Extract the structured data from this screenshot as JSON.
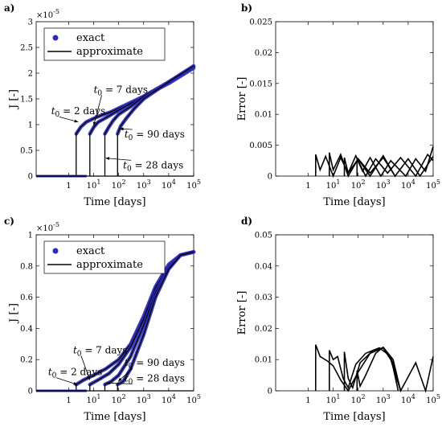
{
  "colors": {
    "exact": "#2b2bb8",
    "approx": "#000000",
    "frame": "#000000"
  },
  "chart_data": [
    {
      "panel": "a)",
      "type": "scatter",
      "xscale": "log",
      "xlabel": "Time [days]",
      "ylabel": "J [-]",
      "ymultiplier": "×10^-5",
      "xlim": [
        0.05,
        100000
      ],
      "ylim": [
        0,
        3
      ],
      "xticks": [
        {
          "v": 1,
          "base": "1",
          "exp": ""
        },
        {
          "v": 10,
          "base": "10",
          "exp": "1"
        },
        {
          "v": 100,
          "base": "10",
          "exp": "2"
        },
        {
          "v": 1000,
          "base": "10",
          "exp": "3"
        },
        {
          "v": 10000,
          "base": "10",
          "exp": "4"
        },
        {
          "v": 100000,
          "base": "10",
          "exp": "5"
        }
      ],
      "yticks": [
        "0",
        "0.5",
        "1",
        "1.5",
        "2",
        "2.5",
        "3"
      ],
      "ytick_values": [
        0,
        0.5,
        1,
        1.5,
        2,
        2.5,
        3
      ],
      "legend": {
        "position": "top-left",
        "entries": [
          "exact",
          "approximate"
        ]
      },
      "series": [
        {
          "name": "t0 = 2 days",
          "t0": 2,
          "points": [
            [
              2,
              0
            ],
            [
              2,
              0.82
            ],
            [
              3,
              0.95
            ],
            [
              5,
              1.05
            ],
            [
              10,
              1.12
            ],
            [
              20,
              1.18
            ],
            [
              50,
              1.25
            ],
            [
              100,
              1.32
            ],
            [
              1000,
              1.55
            ],
            [
              10000,
              1.8
            ],
            [
              100000,
              2.1
            ]
          ]
        },
        {
          "name": "t0 = 7 days",
          "t0": 7,
          "points": [
            [
              7,
              0
            ],
            [
              7,
              0.82
            ],
            [
              10,
              0.95
            ],
            [
              15,
              1.05
            ],
            [
              30,
              1.13
            ],
            [
              100,
              1.28
            ],
            [
              1000,
              1.55
            ],
            [
              10000,
              1.82
            ],
            [
              100000,
              2.12
            ]
          ]
        },
        {
          "name": "t0 = 28 days",
          "t0": 28,
          "points": [
            [
              28,
              0
            ],
            [
              28,
              0.82
            ],
            [
              40,
              0.95
            ],
            [
              60,
              1.08
            ],
            [
              100,
              1.2
            ],
            [
              300,
              1.35
            ],
            [
              1000,
              1.55
            ],
            [
              10000,
              1.83
            ],
            [
              100000,
              2.13
            ]
          ]
        },
        {
          "name": "t0 = 90 days",
          "t0": 90,
          "points": [
            [
              90,
              0
            ],
            [
              90,
              0.82
            ],
            [
              120,
              0.97
            ],
            [
              200,
              1.12
            ],
            [
              400,
              1.3
            ],
            [
              1000,
              1.5
            ],
            [
              10000,
              1.83
            ],
            [
              100000,
              2.14
            ]
          ]
        }
      ],
      "annotations": [
        {
          "text_prefix": "t",
          "sub": "0",
          "text_suffix": " = 7 days",
          "x": 10,
          "y": 1.62,
          "target": [
            10,
            0.98
          ]
        },
        {
          "text_prefix": "t",
          "sub": "0",
          "text_suffix": " = 2 days",
          "x": 0.2,
          "y": 1.2,
          "target": [
            2.4,
            1.05
          ]
        },
        {
          "text_prefix": "t",
          "sub": "0",
          "text_suffix": " = 90 days",
          "x": 170,
          "y": 0.75,
          "target": [
            110,
            0.92
          ]
        },
        {
          "text_prefix": "t",
          "sub": "0",
          "text_suffix": " = 28 days",
          "x": 150,
          "y": 0.15,
          "target": [
            30,
            0.35
          ]
        }
      ]
    },
    {
      "panel": "b)",
      "type": "line",
      "xscale": "log",
      "xlabel": "Time [days]",
      "ylabel": "Error [-]",
      "xlim": [
        0.05,
        100000
      ],
      "ylim": [
        0,
        0.025
      ],
      "xticks": [
        {
          "v": 1,
          "base": "1",
          "exp": ""
        },
        {
          "v": 10,
          "base": "10",
          "exp": "1"
        },
        {
          "v": 100,
          "base": "10",
          "exp": "2"
        },
        {
          "v": 1000,
          "base": "10",
          "exp": "3"
        },
        {
          "v": 10000,
          "base": "10",
          "exp": "4"
        },
        {
          "v": 100000,
          "base": "10",
          "exp": "5"
        }
      ],
      "yticks": [
        "0",
        "0.005",
        "0.01",
        "0.015",
        "0.02",
        "0.025"
      ],
      "ytick_values": [
        0,
        0.005,
        0.01,
        0.015,
        0.02,
        0.025
      ],
      "series": [
        {
          "points": [
            [
              2,
              0
            ],
            [
              2,
              0.0035
            ],
            [
              3,
              0.001
            ],
            [
              5,
              0.0032
            ],
            [
              10,
              0
            ],
            [
              20,
              0.003
            ],
            [
              40,
              0.0005
            ],
            [
              100,
              0.0028
            ],
            [
              300,
              0
            ],
            [
              1000,
              0.0033
            ],
            [
              3000,
              0
            ],
            [
              10000,
              0.0028
            ],
            [
              30000,
              0
            ],
            [
              100000,
              0.0032
            ]
          ]
        },
        {
          "points": [
            [
              7,
              0
            ],
            [
              7,
              0.0038
            ],
            [
              10,
              0.001
            ],
            [
              20,
              0.0035
            ],
            [
              40,
              0
            ],
            [
              100,
              0.0028
            ],
            [
              300,
              0.0005
            ],
            [
              1000,
              0.003
            ],
            [
              3000,
              0
            ]
          ]
        },
        {
          "points": [
            [
              28,
              0
            ],
            [
              28,
              0.003
            ],
            [
              40,
              0.0005
            ],
            [
              80,
              0.0033
            ],
            [
              200,
              0
            ],
            [
              500,
              0.0028
            ],
            [
              1500,
              0.0005
            ],
            [
              5000,
              0.003
            ],
            [
              20000,
              0
            ],
            [
              60000,
              0.0035
            ],
            [
              100000,
              0.0025
            ]
          ]
        },
        {
          "points": [
            [
              90,
              0
            ],
            [
              90,
              0.0028
            ],
            [
              150,
              0.0008
            ],
            [
              300,
              0.003
            ],
            [
              800,
              0
            ],
            [
              2000,
              0.0025
            ],
            [
              8000,
              0
            ],
            [
              20000,
              0.0028
            ],
            [
              50000,
              0.0008
            ],
            [
              100000,
              0.0048
            ]
          ]
        }
      ]
    },
    {
      "panel": "c)",
      "type": "scatter",
      "xscale": "log",
      "xlabel": "Time [days]",
      "ylabel": "J [-]",
      "ymultiplier": "×10^-5",
      "xlim": [
        0.05,
        100000
      ],
      "ylim": [
        0,
        1
      ],
      "xticks": [
        {
          "v": 1,
          "base": "1",
          "exp": ""
        },
        {
          "v": 10,
          "base": "10",
          "exp": "1"
        },
        {
          "v": 100,
          "base": "10",
          "exp": "2"
        },
        {
          "v": 1000,
          "base": "10",
          "exp": "3"
        },
        {
          "v": 10000,
          "base": "10",
          "exp": "4"
        },
        {
          "v": 100000,
          "base": "10",
          "exp": "5"
        }
      ],
      "yticks": [
        "0",
        "0.2",
        "0.4",
        "0.6",
        "0.8",
        "1"
      ],
      "ytick_values": [
        0,
        0.2,
        0.4,
        0.6,
        0.8,
        1
      ],
      "legend": {
        "position": "top-left",
        "entries": [
          "exact",
          "approximate"
        ]
      },
      "series": [
        {
          "name": "t0 = 2 days",
          "t0": 2,
          "points": [
            [
              2,
              0
            ],
            [
              2,
              0.04
            ],
            [
              4,
              0.07
            ],
            [
              10,
              0.1
            ],
            [
              30,
              0.14
            ],
            [
              100,
              0.2
            ],
            [
              300,
              0.3
            ],
            [
              1000,
              0.48
            ],
            [
              3000,
              0.67
            ],
            [
              10000,
              0.81
            ],
            [
              30000,
              0.87
            ],
            [
              100000,
              0.89
            ]
          ]
        },
        {
          "name": "t0 = 7 days",
          "t0": 7,
          "points": [
            [
              7,
              0
            ],
            [
              7,
              0.04
            ],
            [
              15,
              0.07
            ],
            [
              40,
              0.11
            ],
            [
              100,
              0.17
            ],
            [
              300,
              0.28
            ],
            [
              1000,
              0.46
            ],
            [
              3000,
              0.66
            ],
            [
              10000,
              0.8
            ],
            [
              30000,
              0.87
            ],
            [
              100000,
              0.89
            ]
          ]
        },
        {
          "name": "t0 = 28 days",
          "t0": 28,
          "points": [
            [
              28,
              0
            ],
            [
              28,
              0.04
            ],
            [
              50,
              0.06
            ],
            [
              100,
              0.1
            ],
            [
              300,
              0.22
            ],
            [
              1000,
              0.42
            ],
            [
              3000,
              0.63
            ],
            [
              10000,
              0.79
            ],
            [
              30000,
              0.87
            ],
            [
              100000,
              0.89
            ]
          ]
        },
        {
          "name": "t0 = 90 days",
          "t0": 90,
          "points": [
            [
              90,
              0
            ],
            [
              90,
              0.04
            ],
            [
              150,
              0.06
            ],
            [
              300,
              0.14
            ],
            [
              1000,
              0.36
            ],
            [
              3000,
              0.6
            ],
            [
              10000,
              0.78
            ],
            [
              30000,
              0.87
            ],
            [
              100000,
              0.89
            ]
          ]
        }
      ],
      "annotations": [
        {
          "text_prefix": "t",
          "sub": "0",
          "text_suffix": " = 7 days",
          "x": 1.5,
          "y": 0.24,
          "target": [
            7,
            0.07
          ]
        },
        {
          "text_prefix": "t",
          "sub": "0",
          "text_suffix": " = 2 days",
          "x": 0.15,
          "y": 0.1,
          "target": [
            2.2,
            0.04
          ]
        },
        {
          "text_prefix": "t",
          "sub": "0",
          "text_suffix": " = 90 days",
          "x": 170,
          "y": 0.16,
          "target": [
            95,
            0.06
          ]
        },
        {
          "text_prefix": "t",
          "sub": "0",
          "text_suffix": " = 28 days",
          "x": 170,
          "y": 0.06,
          "target": [
            32,
            0.05
          ]
        }
      ]
    },
    {
      "panel": "d)",
      "type": "line",
      "xscale": "log",
      "xlabel": "Time [days]",
      "ylabel": "Error [-]",
      "xlim": [
        0.05,
        100000
      ],
      "ylim": [
        0,
        0.05
      ],
      "xticks": [
        {
          "v": 1,
          "base": "1",
          "exp": ""
        },
        {
          "v": 10,
          "base": "10",
          "exp": "1"
        },
        {
          "v": 100,
          "base": "10",
          "exp": "2"
        },
        {
          "v": 1000,
          "base": "10",
          "exp": "3"
        },
        {
          "v": 10000,
          "base": "10",
          "exp": "4"
        },
        {
          "v": 100000,
          "base": "10",
          "exp": "5"
        }
      ],
      "yticks": [
        "0",
        "0.01",
        "0.02",
        "0.03",
        "0.04",
        "0.05"
      ],
      "ytick_values": [
        0,
        0.01,
        0.02,
        0.03,
        0.04,
        0.05
      ],
      "series": [
        {
          "points": [
            [
              2,
              0
            ],
            [
              2,
              0.0148
            ],
            [
              3,
              0.011
            ],
            [
              6,
              0.0095
            ],
            [
              10,
              0.008
            ],
            [
              20,
              0.0035
            ],
            [
              40,
              0
            ],
            [
              100,
              0.006
            ],
            [
              300,
              0.012
            ],
            [
              1000,
              0.0138
            ],
            [
              2000,
              0.01
            ],
            [
              5000,
              0
            ],
            [
              20000,
              0.009
            ],
            [
              50000,
              0
            ],
            [
              100000,
              0.011
            ]
          ]
        },
        {
          "points": [
            [
              7,
              0
            ],
            [
              7,
              0.013
            ],
            [
              10,
              0.01
            ],
            [
              15,
              0.011
            ],
            [
              25,
              0.004
            ],
            [
              40,
              0.001
            ],
            [
              80,
              0.0085
            ],
            [
              200,
              0.012
            ],
            [
              700,
              0.0138
            ],
            [
              2000,
              0.011
            ],
            [
              4000,
              0
            ]
          ]
        },
        {
          "points": [
            [
              28,
              0
            ],
            [
              28,
              0.0125
            ],
            [
              40,
              0.004
            ],
            [
              60,
              0.001
            ],
            [
              120,
              0.009
            ],
            [
              400,
              0.013
            ],
            [
              1000,
              0.0138
            ],
            [
              2500,
              0.009
            ],
            [
              5000,
              0
            ]
          ]
        },
        {
          "points": [
            [
              90,
              0
            ],
            [
              90,
              0.0065
            ],
            [
              120,
              0.0015
            ],
            [
              200,
              0.005
            ],
            [
              500,
              0.012
            ],
            [
              1000,
              0.014
            ],
            [
              2500,
              0.01
            ],
            [
              5000,
              0
            ]
          ]
        }
      ]
    }
  ]
}
